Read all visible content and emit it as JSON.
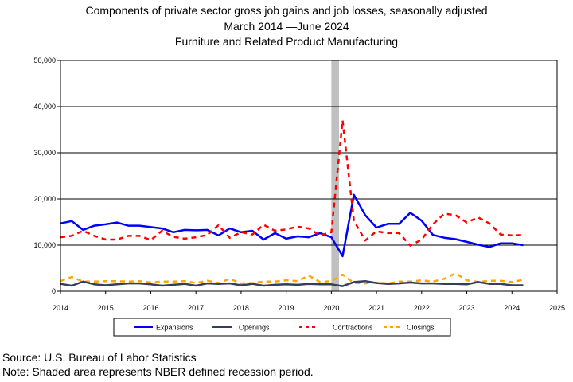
{
  "title_line1": "Components of private sector gross job gains and job losses, seasonally adjusted",
  "title_line2": "March 2014 —June 2024",
  "title_line3": "Furniture and Related Product Manufacturing",
  "source_note": "Source: U.S. Bureau of Labor Statistics",
  "recession_note": "Note: Shaded area represents NBER defined recession period.",
  "colors": {
    "expansions": "#0000ff",
    "openings": "#333f5c",
    "contractions": "#ff0000",
    "closings": "#ffa500",
    "recession_shade": "#c0c0c0",
    "grid": "#000000"
  },
  "chart_data": {
    "type": "line",
    "title": "Components of private sector gross job gains and job losses, seasonally adjusted",
    "xlabel": "",
    "ylabel": "",
    "xlim": [
      2014,
      2025
    ],
    "ylim": [
      0,
      50000
    ],
    "x_ticks": [
      "2014",
      "2015",
      "2016",
      "2017",
      "2018",
      "2019",
      "2020",
      "2021",
      "2022",
      "2023",
      "2024",
      "2025"
    ],
    "y_ticks": [
      "0",
      "10,000",
      "20,000",
      "30,000",
      "40,000",
      "50,000"
    ],
    "y_tick_values": [
      0,
      10000,
      20000,
      30000,
      40000,
      50000
    ],
    "grid": "horizontal",
    "legend_position": "bottom",
    "recession": {
      "start": 2020.0,
      "end": 2020.17
    },
    "x": [
      2014.0,
      2014.25,
      2014.5,
      2014.75,
      2015.0,
      2015.25,
      2015.5,
      2015.75,
      2016.0,
      2016.25,
      2016.5,
      2016.75,
      2017.0,
      2017.25,
      2017.5,
      2017.75,
      2018.0,
      2018.25,
      2018.5,
      2018.75,
      2019.0,
      2019.25,
      2019.5,
      2019.75,
      2020.0,
      2020.25,
      2020.5,
      2020.75,
      2021.0,
      2021.25,
      2021.5,
      2021.75,
      2022.0,
      2022.25,
      2022.5,
      2022.75,
      2023.0,
      2023.25,
      2023.5,
      2023.75,
      2024.0,
      2024.25
    ],
    "series": [
      {
        "name": "Expansions",
        "style": "solid",
        "values": [
          14700,
          15200,
          13300,
          14200,
          14500,
          14900,
          14200,
          14200,
          13900,
          13600,
          12800,
          13300,
          13200,
          13300,
          12100,
          13600,
          12800,
          13100,
          11200,
          12600,
          11400,
          11900,
          11700,
          12600,
          11700,
          7600,
          20900,
          16500,
          13800,
          14600,
          14600,
          17000,
          15300,
          12200,
          11600,
          11300,
          10700,
          10100,
          9600,
          10400,
          10400,
          10000
        ]
      },
      {
        "name": "Openings",
        "style": "solid",
        "values": [
          1600,
          1200,
          2100,
          1500,
          1300,
          1500,
          1700,
          1700,
          1500,
          1200,
          1400,
          1600,
          1200,
          1700,
          1600,
          1700,
          1300,
          1600,
          1200,
          1400,
          1500,
          1400,
          1600,
          1500,
          1500,
          1100,
          2000,
          2200,
          1800,
          1600,
          1700,
          1900,
          1700,
          1700,
          1600,
          1600,
          1500,
          2000,
          1600,
          1600,
          1300,
          1300
        ]
      },
      {
        "name": "Contractions",
        "style": "dashed",
        "values": [
          11700,
          12000,
          13100,
          12000,
          11200,
          11200,
          12000,
          12000,
          11100,
          13100,
          11800,
          11400,
          11700,
          12200,
          14300,
          11600,
          12800,
          12300,
          14400,
          13100,
          13400,
          14000,
          13600,
          12100,
          12800,
          37000,
          15300,
          11000,
          13000,
          12600,
          12600,
          9900,
          11200,
          14500,
          16800,
          16500,
          14900,
          16000,
          14700,
          12300,
          12100,
          12200
        ]
      },
      {
        "name": "Closings",
        "style": "dashed",
        "values": [
          2200,
          3100,
          2100,
          2100,
          2200,
          2200,
          2100,
          2200,
          1900,
          2100,
          2100,
          2200,
          1800,
          2300,
          1800,
          2700,
          1700,
          1800,
          2100,
          2100,
          2400,
          2200,
          3400,
          2000,
          2200,
          3600,
          1800,
          1700,
          1900,
          1700,
          2100,
          2100,
          2400,
          2100,
          2700,
          3900,
          2400,
          2000,
          2300,
          2300,
          2000,
          2500
        ]
      }
    ]
  }
}
